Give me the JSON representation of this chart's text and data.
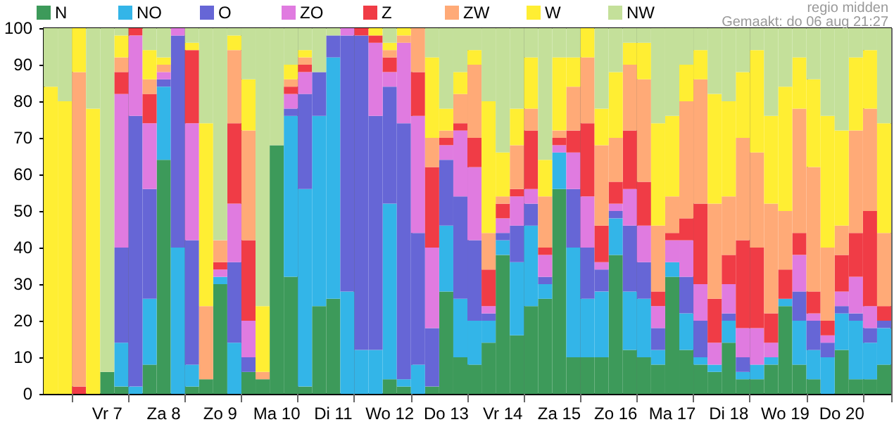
{
  "chart_data": {
    "type": "bar",
    "stacked": true,
    "annotations": [
      "regio midden",
      "Gemaakt: do 06 aug 21:27"
    ],
    "categories": [
      null,
      null,
      null,
      null,
      "Vr 7",
      null,
      null,
      null,
      "Za 8",
      null,
      null,
      null,
      "Zo 9",
      null,
      null,
      null,
      "Ma 10",
      null,
      null,
      null,
      "Di 11",
      null,
      null,
      null,
      "Wo 12",
      null,
      null,
      null,
      "Do 13",
      null,
      null,
      null,
      "Vr 14",
      null,
      null,
      null,
      "Za 15",
      null,
      null,
      null,
      "Zo 16",
      null,
      null,
      null,
      "Ma 17",
      null,
      null,
      null,
      "Di 18",
      null,
      null,
      null,
      "Wo 19",
      null,
      null,
      null,
      "Do 20",
      null,
      null,
      null
    ],
    "ylim": [
      0,
      100
    ],
    "yticks": [
      0,
      10,
      20,
      30,
      40,
      50,
      60,
      70,
      80,
      90,
      100
    ],
    "grid": "x",
    "legend": "top left",
    "series": [
      {
        "name": "N",
        "color": "#3d9a5a",
        "values": [
          0,
          0,
          0,
          0,
          6,
          2,
          0,
          8,
          64,
          0,
          2,
          4,
          30,
          0,
          6,
          4,
          68,
          32,
          2,
          24,
          26,
          0,
          0,
          0,
          4,
          2,
          0,
          2,
          28,
          10,
          8,
          14,
          38,
          16,
          24,
          26,
          56,
          10,
          10,
          10,
          38,
          12,
          10,
          8,
          32,
          12,
          8,
          6,
          14,
          4,
          4,
          8,
          24,
          8,
          4,
          0,
          12,
          4,
          4,
          8
        ]
      },
      {
        "name": "NO",
        "color": "#33b5e8",
        "values": [
          0,
          0,
          0,
          0,
          0,
          12,
          2,
          18,
          20,
          40,
          6,
          0,
          2,
          14,
          0,
          0,
          0,
          44,
          54,
          52,
          66,
          28,
          12,
          12,
          48,
          2,
          8,
          0,
          18,
          16,
          12,
          6,
          4,
          20,
          22,
          4,
          10,
          30,
          16,
          18,
          10,
          16,
          16,
          4,
          4,
          10,
          2,
          2,
          6,
          2,
          4,
          2,
          2,
          12,
          8,
          10,
          10,
          16,
          10,
          10
        ]
      },
      {
        "name": "O",
        "color": "#6666d6",
        "values": [
          0,
          0,
          0,
          0,
          0,
          26,
          74,
          30,
          2,
          58,
          34,
          0,
          0,
          22,
          4,
          0,
          0,
          2,
          26,
          12,
          6,
          70,
          86,
          64,
          32,
          70,
          36,
          16,
          18,
          28,
          22,
          2,
          2,
          10,
          6,
          2,
          0,
          16,
          14,
          6,
          2,
          18,
          10,
          6,
          0,
          10,
          10,
          0,
          2,
          4,
          0,
          0,
          0,
          8,
          8,
          4,
          2,
          2,
          4,
          2
        ]
      },
      {
        "name": "ZO",
        "color": "#e07be0",
        "values": [
          0,
          0,
          0,
          0,
          0,
          42,
          22,
          18,
          2,
          2,
          32,
          0,
          2,
          16,
          10,
          0,
          0,
          4,
          6,
          0,
          0,
          2,
          0,
          20,
          4,
          22,
          32,
          22,
          4,
          18,
          20,
          2,
          4,
          8,
          4,
          6,
          2,
          10,
          14,
          2,
          2,
          10,
          10,
          6,
          6,
          10,
          10,
          6,
          8,
          8,
          10,
          4,
          0,
          10,
          2,
          2,
          4,
          10,
          6,
          0
        ]
      },
      {
        "name": "Z",
        "color": "#f03c46",
        "values": [
          0,
          0,
          2,
          0,
          0,
          6,
          2,
          8,
          0,
          0,
          20,
          0,
          2,
          22,
          22,
          0,
          0,
          2,
          2,
          0,
          0,
          0,
          2,
          2,
          4,
          0,
          12,
          22,
          2,
          2,
          8,
          10,
          4,
          2,
          16,
          2,
          2,
          6,
          20,
          10,
          6,
          16,
          12,
          4,
          2,
          6,
          22,
          12,
          8,
          24,
          22,
          8,
          8,
          6,
          6,
          4,
          10,
          12,
          26,
          4
        ]
      },
      {
        "name": "ZW",
        "color": "#ffaa77",
        "values": [
          0,
          0,
          86,
          0,
          0,
          4,
          0,
          4,
          2,
          0,
          0,
          20,
          6,
          20,
          30,
          2,
          0,
          2,
          2,
          0,
          0,
          0,
          0,
          0,
          2,
          2,
          12,
          8,
          2,
          8,
          20,
          10,
          2,
          12,
          6,
          14,
          2,
          12,
          18,
          22,
          12,
          18,
          28,
          18,
          10,
          32,
          34,
          26,
          16,
          28,
          26,
          30,
          16,
          34,
          34,
          20,
          8,
          28,
          28,
          20
        ]
      },
      {
        "name": "W",
        "color": "#ffee33",
        "values": [
          84,
          80,
          12,
          78,
          0,
          6,
          0,
          8,
          2,
          0,
          2,
          50,
          0,
          4,
          14,
          18,
          0,
          4,
          2,
          0,
          0,
          0,
          0,
          2,
          2,
          2,
          0,
          22,
          6,
          6,
          4,
          36,
          12,
          10,
          14,
          10,
          20,
          8,
          8,
          10,
          18,
          6,
          10,
          28,
          22,
          10,
          8,
          30,
          26,
          18,
          28,
          24,
          34,
          14,
          24,
          36,
          26,
          20,
          16,
          30
        ]
      },
      {
        "name": "NW",
        "color": "#c4e09a",
        "values": [
          16,
          20,
          0,
          22,
          94,
          2,
          0,
          6,
          8,
          0,
          4,
          26,
          58,
          2,
          14,
          76,
          32,
          10,
          6,
          12,
          2,
          0,
          0,
          0,
          4,
          0,
          0,
          8,
          22,
          12,
          6,
          20,
          34,
          22,
          8,
          36,
          8,
          8,
          0,
          22,
          12,
          4,
          4,
          26,
          24,
          10,
          6,
          18,
          20,
          12,
          6,
          24,
          16,
          8,
          14,
          24,
          28,
          8,
          6,
          26
        ]
      }
    ]
  }
}
